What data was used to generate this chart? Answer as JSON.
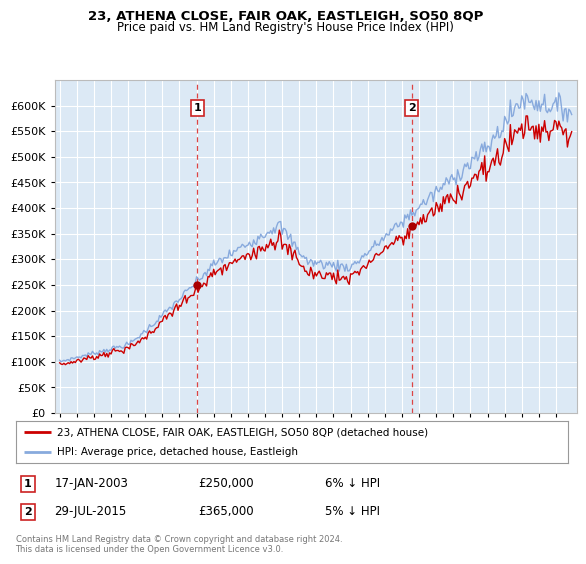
{
  "title": "23, ATHENA CLOSE, FAIR OAK, EASTLEIGH, SO50 8QP",
  "subtitle": "Price paid vs. HM Land Registry's House Price Index (HPI)",
  "property_label": "23, ATHENA CLOSE, FAIR OAK, EASTLEIGH, SO50 8QP (detached house)",
  "hpi_label": "HPI: Average price, detached house, Eastleigh",
  "sale1_date": "17-JAN-2003",
  "sale1_price": 250000,
  "sale1_pct": "6% ↓ HPI",
  "sale2_date": "29-JUL-2015",
  "sale2_price": 365000,
  "sale2_pct": "5% ↓ HPI",
  "footer": "Contains HM Land Registry data © Crown copyright and database right 2024.\nThis data is licensed under the Open Government Licence v3.0.",
  "bg_color": "#ffffff",
  "plot_bg_color": "#dce9f5",
  "grid_color": "#ffffff",
  "line_color_property": "#cc0000",
  "line_color_hpi": "#88aadd",
  "vline_color": "#dd4444",
  "marker_color_property": "#aa0000",
  "ylim": [
    0,
    650000
  ],
  "yticks": [
    0,
    50000,
    100000,
    150000,
    200000,
    250000,
    300000,
    350000,
    400000,
    450000,
    500000,
    550000,
    600000
  ],
  "sale1_x": 2003.04,
  "sale2_x": 2015.57
}
